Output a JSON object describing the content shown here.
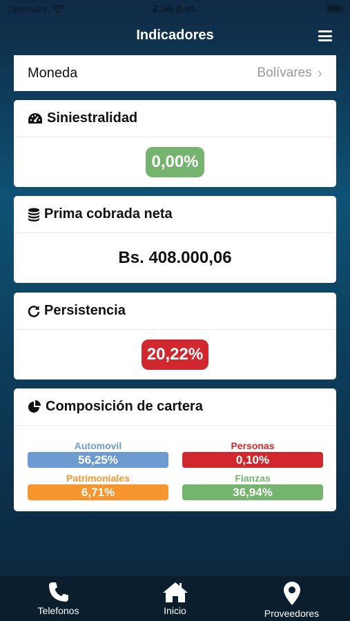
{
  "status_bar": {
    "carrier": "Operador",
    "time": "2:36 p.m."
  },
  "navbar": {
    "title": "Indicadores"
  },
  "currency": {
    "label": "Moneda",
    "value": "Bolívares"
  },
  "siniestralidad": {
    "title": "Siniestralidad",
    "value": "0,00%",
    "color": "#74b46e"
  },
  "prima": {
    "title": "Prima cobrada neta",
    "value": "Bs. 408.000,06"
  },
  "persistencia": {
    "title": "Persistencia",
    "value": "20,22%",
    "color": "#d0282e"
  },
  "composicion": {
    "title": "Composición de cartera",
    "items": [
      {
        "name": "Automovil",
        "value": "56,25%",
        "color": "#6b9bd1"
      },
      {
        "name": "Personas",
        "value": "0,10%",
        "color": "#d0282e"
      },
      {
        "name": "Patrimoniales",
        "value": "6,71%",
        "color": "#f7962f"
      },
      {
        "name": "Fianzas",
        "value": "36,94%",
        "color": "#74b46e"
      }
    ]
  },
  "tabbar": {
    "items": [
      {
        "label": "Telefonos",
        "icon": "phone-icon"
      },
      {
        "label": "Inicio",
        "icon": "home-icon"
      },
      {
        "label": "Proveedores",
        "icon": "map-pin-icon"
      }
    ]
  }
}
